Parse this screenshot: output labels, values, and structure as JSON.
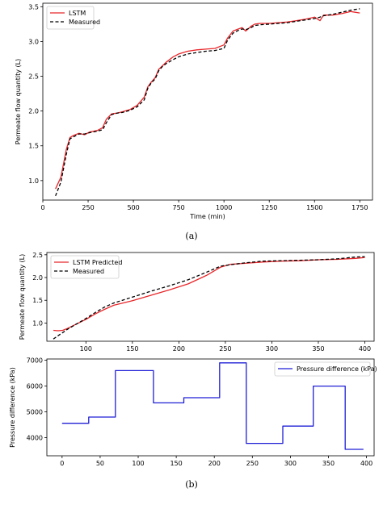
{
  "colors": {
    "lstm": "#e8262a",
    "measured": "#000000",
    "pressure": "#1f1fd6"
  },
  "panel_a": {
    "label": "(a)",
    "chart_data": {
      "type": "line",
      "xlabel": "Time (min)",
      "ylabel": "Permeate flow quantity (L)",
      "xlim": [
        0,
        1820
      ],
      "ylim": [
        0.72,
        3.55
      ],
      "xticks": [
        0,
        250,
        500,
        750,
        1000,
        1250,
        1500,
        1750
      ],
      "yticks": [
        1.0,
        1.5,
        2.0,
        2.5,
        3.0,
        3.5
      ],
      "xtick_labels": [
        "0",
        "250",
        "500",
        "750",
        "1000",
        "1250",
        "1500",
        "1750"
      ],
      "ytick_labels": [
        "1.0",
        "1.5",
        "2.0",
        "2.5",
        "3.0",
        "3.5"
      ],
      "legend": "top-left",
      "series": [
        {
          "name": "LSTM",
          "style": "solid",
          "x": [
            70,
            100,
            130,
            150,
            170,
            200,
            230,
            260,
            300,
            330,
            350,
            380,
            410,
            440,
            480,
            520,
            560,
            580,
            600,
            620,
            640,
            660,
            680,
            700,
            720,
            750,
            800,
            850,
            900,
            950,
            1000,
            1020,
            1050,
            1080,
            1100,
            1120,
            1150,
            1170,
            1200,
            1250,
            1300,
            1350,
            1400,
            1450,
            1500,
            1530,
            1550,
            1600,
            1650,
            1700,
            1750
          ],
          "y": [
            0.88,
            1.05,
            1.45,
            1.62,
            1.65,
            1.68,
            1.66,
            1.7,
            1.72,
            1.76,
            1.88,
            1.96,
            1.97,
            1.99,
            2.02,
            2.08,
            2.2,
            2.35,
            2.42,
            2.48,
            2.6,
            2.65,
            2.7,
            2.74,
            2.78,
            2.82,
            2.86,
            2.88,
            2.89,
            2.9,
            2.95,
            3.05,
            3.15,
            3.18,
            3.2,
            3.15,
            3.22,
            3.25,
            3.26,
            3.26,
            3.27,
            3.28,
            3.3,
            3.32,
            3.35,
            3.3,
            3.38,
            3.38,
            3.4,
            3.43,
            3.41
          ]
        },
        {
          "name": "Measured",
          "style": "dashed",
          "x": [
            70,
            100,
            130,
            150,
            170,
            200,
            230,
            260,
            300,
            330,
            350,
            380,
            410,
            440,
            480,
            520,
            560,
            580,
            600,
            620,
            640,
            660,
            680,
            700,
            720,
            750,
            800,
            850,
            900,
            950,
            1000,
            1020,
            1050,
            1080,
            1100,
            1120,
            1150,
            1170,
            1200,
            1250,
            1300,
            1350,
            1400,
            1450,
            1500,
            1530,
            1550,
            1600,
            1650,
            1700,
            1750
          ],
          "y": [
            0.78,
            0.98,
            1.38,
            1.6,
            1.63,
            1.67,
            1.67,
            1.69,
            1.71,
            1.73,
            1.83,
            1.95,
            1.97,
            1.98,
            2.01,
            2.06,
            2.16,
            2.33,
            2.41,
            2.46,
            2.58,
            2.64,
            2.68,
            2.71,
            2.74,
            2.78,
            2.82,
            2.84,
            2.86,
            2.87,
            2.9,
            3.02,
            3.12,
            3.16,
            3.18,
            3.17,
            3.2,
            3.23,
            3.24,
            3.25,
            3.26,
            3.27,
            3.29,
            3.31,
            3.33,
            3.35,
            3.37,
            3.39,
            3.42,
            3.45,
            3.47
          ]
        }
      ]
    }
  },
  "panel_b": {
    "label": "(b)",
    "top": {
      "chart_data": {
        "type": "line",
        "xlabel": "",
        "ylabel": "Permeate flow quantity (L)",
        "xlim": [
          58,
          410
        ],
        "ylim": [
          0.6,
          2.55
        ],
        "xticks": [
          100,
          150,
          200,
          250,
          300,
          350,
          400
        ],
        "yticks": [
          1.0,
          1.5,
          2.0,
          2.5
        ],
        "xtick_labels": [
          "100",
          "150",
          "200",
          "250",
          "300",
          "350",
          "400"
        ],
        "ytick_labels": [
          "1.0",
          "1.5",
          "2.0",
          "2.5"
        ],
        "legend": "top-left",
        "series": [
          {
            "name": "LSTM Predicted",
            "style": "solid",
            "x": [
              65,
              70,
              75,
              80,
              90,
              100,
              110,
              120,
              130,
              150,
              170,
              190,
              210,
              230,
              245,
              255,
              270,
              290,
              310,
              330,
              350,
              370,
              390,
              400
            ],
            "y": [
              0.84,
              0.83,
              0.84,
              0.88,
              0.98,
              1.08,
              1.2,
              1.3,
              1.39,
              1.49,
              1.61,
              1.73,
              1.86,
              2.05,
              2.23,
              2.29,
              2.31,
              2.34,
              2.36,
              2.37,
              2.39,
              2.4,
              2.42,
              2.44
            ]
          },
          {
            "name": "Measured",
            "style": "dashed",
            "x": [
              65,
              70,
              75,
              80,
              90,
              100,
              110,
              120,
              130,
              150,
              170,
              190,
              210,
              230,
              245,
              255,
              270,
              290,
              310,
              330,
              350,
              370,
              390,
              400
            ],
            "y": [
              0.65,
              0.72,
              0.79,
              0.86,
              0.98,
              1.1,
              1.23,
              1.35,
              1.44,
              1.57,
              1.7,
              1.82,
              1.95,
              2.12,
              2.25,
              2.28,
              2.32,
              2.36,
              2.37,
              2.38,
              2.39,
              2.41,
              2.45,
              2.46
            ]
          }
        ]
      }
    },
    "bottom": {
      "chart_data": {
        "type": "line",
        "xlabel": "",
        "ylabel": "Pressure difference (kPa)",
        "xlim": [
          -20,
          410
        ],
        "ylim": [
          3300,
          7050
        ],
        "xticks": [
          0,
          50,
          100,
          150,
          200,
          250,
          300,
          350,
          400
        ],
        "yticks": [
          4000,
          5000,
          6000,
          7000
        ],
        "xtick_labels": [
          "0",
          "50",
          "100",
          "150",
          "200",
          "250",
          "300",
          "350",
          "400"
        ],
        "ytick_labels": [
          "4000",
          "5000",
          "6000",
          "7000"
        ],
        "legend": "top-right",
        "series": [
          {
            "name": "Pressure difference (kPa)",
            "style": "solid",
            "x": [
              0,
              35,
              35,
              70,
              70,
              120,
              120,
              160,
              160,
              207,
              207,
              242,
              242,
              290,
              290,
              330,
              330,
              372,
              372,
              396
            ],
            "y": [
              4560,
              4560,
              4800,
              4800,
              6600,
              6600,
              5350,
              5350,
              5550,
              5550,
              6900,
              6900,
              3780,
              3780,
              4450,
              4450,
              6000,
              6000,
              3550,
              3550
            ]
          }
        ]
      }
    }
  }
}
